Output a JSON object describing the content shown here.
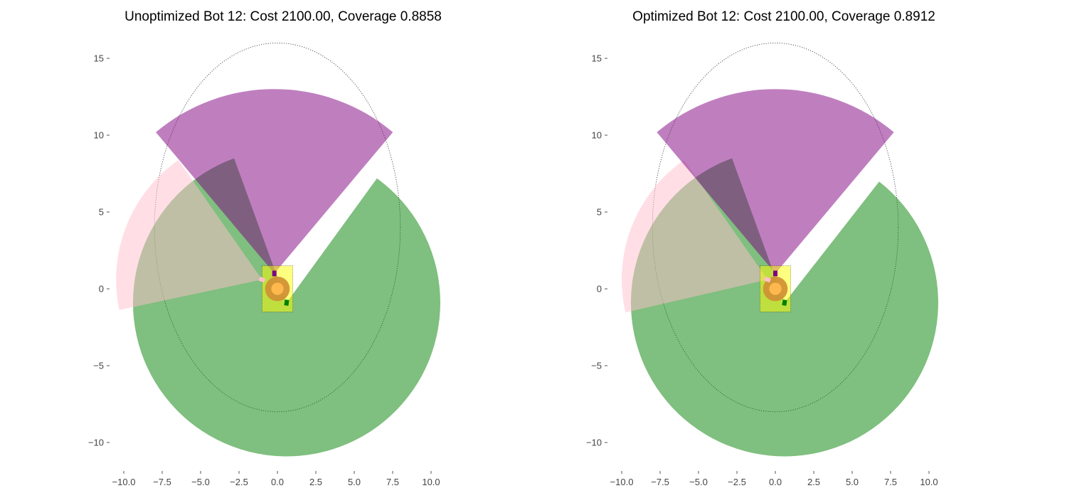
{
  "chart_data": [
    {
      "type": "coverage-plot",
      "title": "Unoptimized Bot 12: Cost 2100.00, Coverage 0.8858",
      "xlim": [
        -10.8,
        10.8
      ],
      "ylim": [
        -12,
        16
      ],
      "x_ticks": [
        "−10.0",
        "−7.5",
        "−5.0",
        "−2.5",
        "0.0",
        "2.5",
        "5.0",
        "7.5",
        "10.0"
      ],
      "x_tick_values": [
        -10,
        -7.5,
        -5,
        -2.5,
        0,
        2.5,
        5,
        7.5,
        10
      ],
      "y_ticks": [
        "−10",
        "−5",
        "0",
        "5",
        "10",
        "15"
      ],
      "y_tick_values": [
        -10,
        -5,
        0,
        5,
        10,
        15
      ],
      "grid": false,
      "body": {
        "x_range": [
          -1,
          1
        ],
        "y_range": [
          -1.5,
          1.5
        ],
        "color": "#ffff00"
      },
      "target_ellipse": {
        "cx": 0,
        "cy": 4,
        "rx": 8,
        "ry": 12
      },
      "sensors": [
        {
          "color": "#008000",
          "origin": [
            0.6,
            -0.9
          ],
          "range": 10,
          "start_deg": -250,
          "end_deg": 54
        },
        {
          "color": "#ffc0cb",
          "origin": [
            -1.0,
            0.6
          ],
          "range": 9.5,
          "start_deg": 125,
          "end_deg": 192
        },
        {
          "color": "#800080",
          "origin": [
            -0.2,
            1.0
          ],
          "range": 12,
          "start_deg": 50,
          "end_deg": 130
        },
        {
          "color": "#ffa500",
          "origin": [
            0,
            0
          ],
          "range": 0.8,
          "start_deg": 0,
          "end_deg": 360
        }
      ]
    },
    {
      "type": "coverage-plot",
      "title": "Optimized Bot 12: Cost 2100.00, Coverage 0.8912",
      "xlim": [
        -10.8,
        10.8
      ],
      "ylim": [
        -12,
        16
      ],
      "x_ticks": [
        "−10.0",
        "−7.5",
        "−5.0",
        "−2.5",
        "0.0",
        "2.5",
        "5.0",
        "7.5",
        "10.0"
      ],
      "x_tick_values": [
        -10,
        -7.5,
        -5,
        -2.5,
        0,
        2.5,
        5,
        7.5,
        10
      ],
      "y_ticks": [
        "−10",
        "−5",
        "0",
        "5",
        "10",
        "15"
      ],
      "y_tick_values": [
        -10,
        -5,
        0,
        5,
        10,
        15
      ],
      "grid": false,
      "body": {
        "x_range": [
          -1,
          1
        ],
        "y_range": [
          -1.5,
          1.5
        ],
        "color": "#ffff00"
      },
      "target_ellipse": {
        "cx": 0,
        "cy": 4,
        "rx": 8,
        "ry": 12
      },
      "sensors": [
        {
          "color": "#008000",
          "origin": [
            0.6,
            -0.9
          ],
          "range": 10,
          "start_deg": -250,
          "end_deg": 52
        },
        {
          "color": "#ffc0cb",
          "origin": [
            -0.5,
            0.6
          ],
          "range": 9.5,
          "start_deg": 125,
          "end_deg": 193
        },
        {
          "color": "#800080",
          "origin": [
            0.0,
            1.0
          ],
          "range": 12,
          "start_deg": 50,
          "end_deg": 130
        },
        {
          "color": "#ffa500",
          "origin": [
            0,
            0
          ],
          "range": 0.8,
          "start_deg": 0,
          "end_deg": 360
        }
      ]
    }
  ]
}
